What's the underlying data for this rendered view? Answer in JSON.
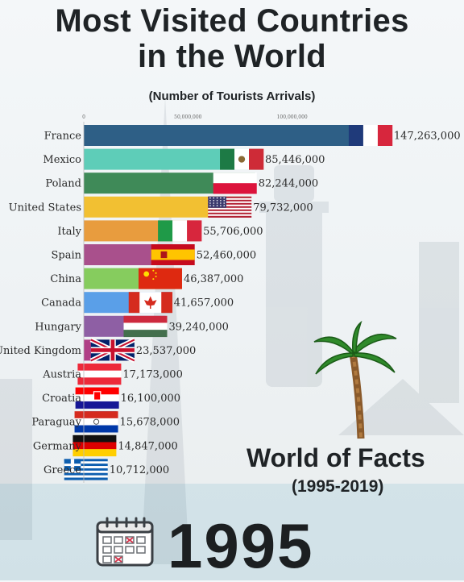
{
  "header": {
    "title_line1": "Most Visited Countries",
    "title_line2": "in the World",
    "subtitle": "(Number of Tourists Arrivals)"
  },
  "branding": {
    "name": "World of Facts",
    "period": "(1995-2019)",
    "icon": "palm-tree-icon"
  },
  "year_display": {
    "year": "1995",
    "icon": "calendar-icon"
  },
  "chart_data": {
    "type": "bar",
    "orientation": "horizontal",
    "title": "Most Visited Countries in the World",
    "subtitle": "(Number of Tourists Arrivals)",
    "xlim": [
      0,
      150000000
    ],
    "xticks": [
      0,
      50000000,
      100000000
    ],
    "xtick_labels": [
      "0",
      "50,000,000",
      "100,000,000"
    ],
    "categories": [
      "France",
      "Mexico",
      "Poland",
      "United States",
      "Italy",
      "Spain",
      "China",
      "Canada",
      "Hungary",
      "United Kingdom",
      "Austria",
      "Croatia",
      "Paraguay",
      "Germany",
      "Greece"
    ],
    "values": [
      147263000,
      85446000,
      82244000,
      79732000,
      55706000,
      52460000,
      46387000,
      41657000,
      39240000,
      23537000,
      17173000,
      16100000,
      15678000,
      14847000,
      10712000
    ],
    "value_labels": [
      "147,263,000",
      "85,446,000",
      "82,244,000",
      "79,732,000",
      "55,706,000",
      "52,460,000",
      "46,387,000",
      "41,657,000",
      "39,240,000",
      "23,537,000",
      "17,173,000",
      "16,100,000",
      "15,678,000",
      "14,847,000",
      "10,712,000"
    ],
    "bar_colors": [
      "#2e5f86",
      "#5ecdb8",
      "#3f8a58",
      "#f2c032",
      "#e89c3e",
      "#a9508c",
      "#86cc5e",
      "#5a9fe8",
      "#8e5fa4",
      "#b03f86",
      "#c74ea0",
      "#6a4cb4",
      "#4a78c4",
      "#e6a93c",
      "#5a8fd0"
    ],
    "flags": [
      "france-flag",
      "mexico-flag",
      "poland-flag",
      "usa-flag",
      "italy-flag",
      "spain-flag",
      "china-flag",
      "canada-flag",
      "hungary-flag",
      "uk-flag",
      "austria-flag",
      "croatia-flag",
      "paraguay-flag",
      "germany-flag",
      "greece-flag"
    ],
    "grid": false,
    "legend": "none"
  }
}
